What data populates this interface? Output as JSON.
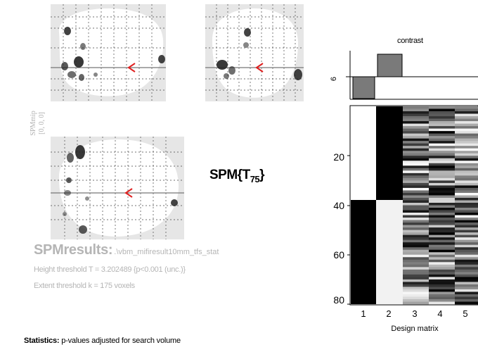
{
  "mip": {
    "label_line1": "SPMmip",
    "label_line2": "[0, 0, 0]"
  },
  "stat_title": {
    "main": "SPM{T",
    "sub": "75",
    "close": "}"
  },
  "results": {
    "heading": "SPMresults:",
    "path": ".\\vbm_mifiresult10mm_tfs_stat",
    "height_threshold": "Height threshold T = 3.202489  {p<0.001 (unc.)}",
    "extent_threshold": "Extent threshold k = 175 voxels"
  },
  "statistics": {
    "heading": "Statistics:",
    "text": "p-values adjusted for search volume"
  },
  "contrast": {
    "title": "contrast",
    "y_tick": "6",
    "weights": [
      -1,
      1,
      0,
      0,
      0,
      0
    ]
  },
  "design_matrix": {
    "xlabel": "Design matrix",
    "x_ticks": [
      "1",
      "2",
      "3",
      "4",
      "5"
    ],
    "y_ticks": [
      "20",
      "40",
      "60",
      "80"
    ],
    "rows": 80
  },
  "colors": {
    "arrow": "#e02020",
    "mip_bg": "#e6e6e6",
    "contrast_bar": "#7a7a7a"
  }
}
